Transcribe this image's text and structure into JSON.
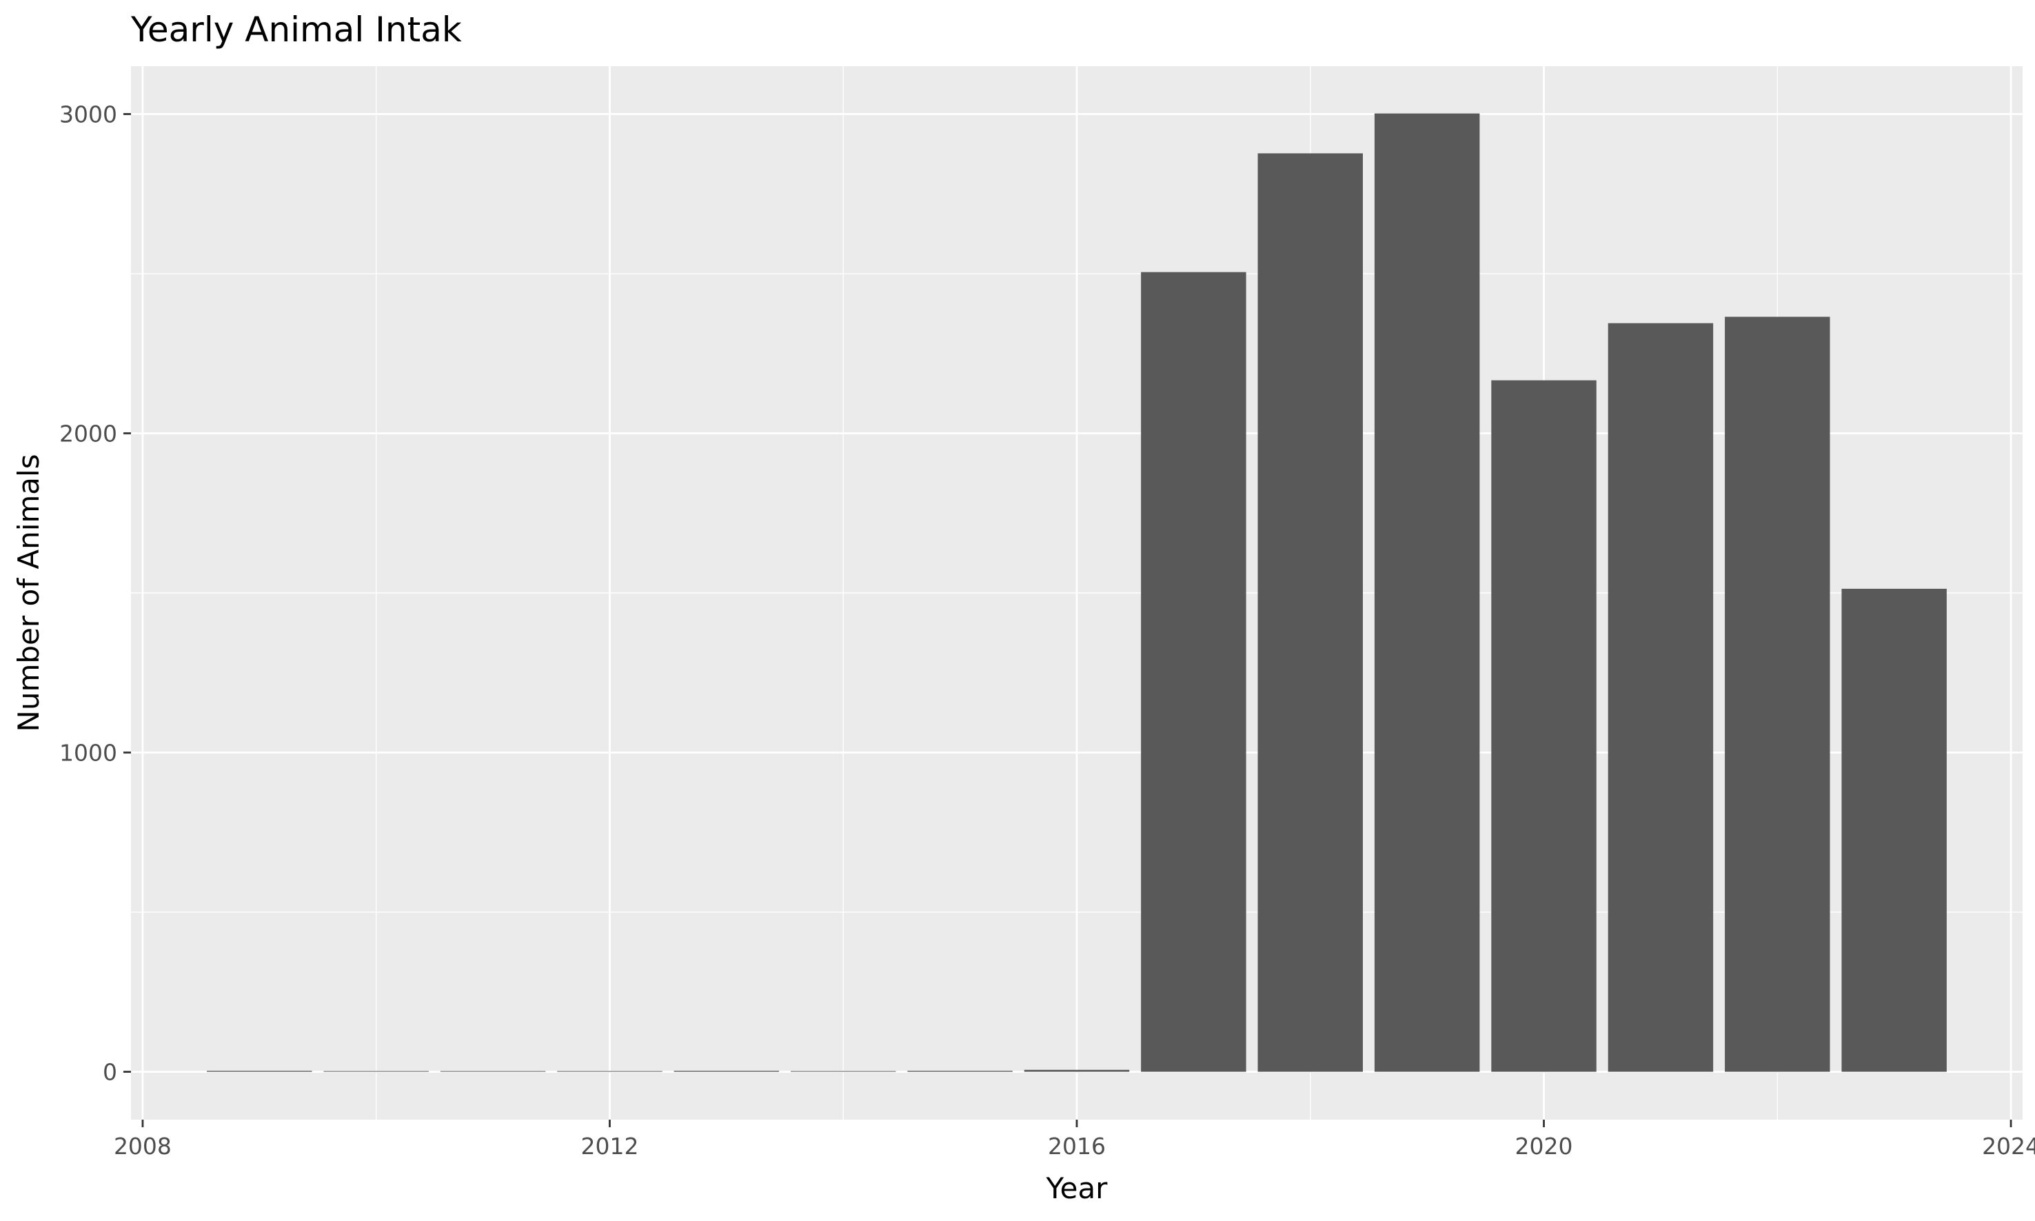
{
  "chart_data": {
    "type": "bar",
    "title": "Yearly Animal Intak",
    "xlabel": "Year",
    "ylabel": "Number of Animals",
    "x": [
      2009,
      2010,
      2011,
      2012,
      2013,
      2014,
      2015,
      2016,
      2017,
      2018,
      2019,
      2020,
      2021,
      2022,
      2023
    ],
    "values": [
      3,
      0,
      0,
      2,
      3,
      0,
      3,
      6,
      2505,
      2877,
      3002,
      2166,
      2345,
      2365,
      1513
    ],
    "xlim": [
      2007.9,
      2024.1
    ],
    "ylim": [
      -150,
      3150
    ],
    "x_ticks": [
      2008,
      2012,
      2016,
      2020,
      2024
    ],
    "y_ticks": [
      0,
      1000,
      2000,
      3000
    ],
    "x_tick_labels": [
      "2008",
      "2012",
      "2016",
      "2020",
      "2024"
    ],
    "y_tick_labels": [
      "0",
      "1000",
      "2000",
      "3000"
    ],
    "grid": true,
    "legend": "none"
  },
  "colors": {
    "panel_background": "#ebebeb",
    "grid_major": "#ffffff",
    "bar_fill": "#595959",
    "text": "#000000",
    "tick_text": "#4d4d4d"
  }
}
